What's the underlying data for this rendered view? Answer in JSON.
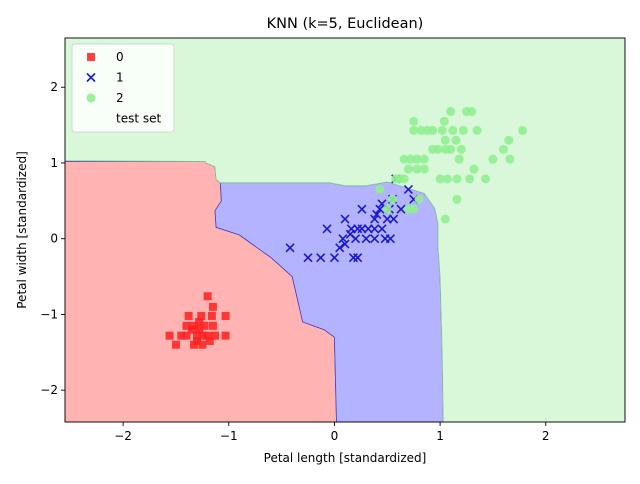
{
  "chart_data": {
    "type": "scatter",
    "title": "KNN (k=5, Euclidean)",
    "xlabel": "Petal length [standardized]",
    "ylabel": "Petal width [standardized]",
    "xlim": [
      -2.55,
      2.75
    ],
    "ylim": [
      -2.42,
      2.65
    ],
    "x_ticks": [
      -2,
      -1,
      0,
      1,
      2
    ],
    "y_ticks": [
      -2,
      -1,
      0,
      1,
      2
    ],
    "x_tick_labels": [
      "−2",
      "−1",
      "0",
      "1",
      "2"
    ],
    "y_tick_labels": [
      "−2",
      "−1",
      "0",
      "1",
      "2"
    ],
    "grid": false,
    "legend_position": "top-left",
    "decision_regions": [
      {
        "class": "0",
        "color": "#ffb3b3",
        "edge": "#d04040",
        "polygon": [
          [
            -2.55,
            -2.42
          ],
          [
            -2.55,
            1.02
          ],
          [
            -1.22,
            1.02
          ],
          [
            -1.22,
            1.0
          ],
          [
            -1.18,
            0.98
          ],
          [
            -1.13,
            0.95
          ],
          [
            -1.12,
            0.78
          ],
          [
            -1.08,
            0.74
          ],
          [
            -1.07,
            0.5
          ],
          [
            -1.13,
            0.37
          ],
          [
            -1.12,
            0.15
          ],
          [
            -0.9,
            0.05
          ],
          [
            -0.8,
            -0.05
          ],
          [
            -0.6,
            -0.25
          ],
          [
            -0.4,
            -0.5
          ],
          [
            -0.3,
            -1.1
          ],
          [
            -0.1,
            -1.2
          ],
          [
            0.0,
            -1.3
          ],
          [
            0.02,
            -2.42
          ]
        ]
      },
      {
        "class": "1",
        "color": "#b3b3ff",
        "edge": "#4040d0",
        "polygon": [
          [
            -1.22,
            1.02
          ],
          [
            -1.22,
            1.0
          ],
          [
            -1.18,
            0.98
          ],
          [
            -1.13,
            0.95
          ],
          [
            -1.12,
            0.78
          ],
          [
            -1.08,
            0.74
          ],
          [
            -0.05,
            0.74
          ],
          [
            0.1,
            0.7
          ],
          [
            0.3,
            0.7
          ],
          [
            0.5,
            0.75
          ],
          [
            0.85,
            0.6
          ],
          [
            0.95,
            0.4
          ],
          [
            0.98,
            0.2
          ],
          [
            0.98,
            -0.1
          ],
          [
            1.0,
            -0.5
          ],
          [
            1.02,
            -1.5
          ],
          [
            1.03,
            -2.42
          ],
          [
            0.02,
            -2.42
          ],
          [
            0.0,
            -1.3
          ],
          [
            -0.1,
            -1.2
          ],
          [
            -0.3,
            -1.1
          ],
          [
            -0.4,
            -0.5
          ],
          [
            -0.6,
            -0.25
          ],
          [
            -0.8,
            -0.05
          ],
          [
            -0.9,
            0.05
          ],
          [
            -1.12,
            0.15
          ],
          [
            -1.13,
            0.37
          ],
          [
            -1.07,
            0.5
          ],
          [
            -1.08,
            0.74
          ],
          [
            -1.12,
            0.78
          ],
          [
            -1.13,
            0.95
          ],
          [
            -1.18,
            0.98
          ],
          [
            -1.22,
            1.0
          ],
          [
            -1.22,
            1.02
          ],
          [
            -2.55,
            1.02
          ],
          [
            -2.55,
            1.03
          ]
        ]
      },
      {
        "class": "2",
        "color": "#d9f7d9",
        "edge": "#8ad08a",
        "polygon": [
          [
            -2.55,
            2.65
          ],
          [
            2.75,
            2.65
          ],
          [
            2.75,
            -2.42
          ],
          [
            1.03,
            -2.42
          ],
          [
            1.02,
            -1.5
          ],
          [
            1.0,
            -0.5
          ],
          [
            0.98,
            -0.1
          ],
          [
            0.98,
            0.2
          ],
          [
            0.95,
            0.4
          ],
          [
            0.85,
            0.6
          ],
          [
            0.5,
            0.75
          ],
          [
            0.3,
            0.7
          ],
          [
            0.1,
            0.7
          ],
          [
            -0.05,
            0.74
          ],
          [
            -1.08,
            0.74
          ],
          [
            -1.12,
            0.78
          ],
          [
            -1.13,
            0.95
          ],
          [
            -1.18,
            0.98
          ],
          [
            -1.22,
            1.0
          ],
          [
            -1.22,
            1.02
          ],
          [
            -2.55,
            1.03
          ]
        ]
      }
    ],
    "series": [
      {
        "name": "0",
        "marker": "square",
        "color": "#ff2020",
        "points": [
          [
            -1.56,
            -1.28
          ],
          [
            -1.5,
            -1.4
          ],
          [
            -1.45,
            -1.28
          ],
          [
            -1.4,
            -1.15
          ],
          [
            -1.4,
            -1.28
          ],
          [
            -1.38,
            -1.02
          ],
          [
            -1.35,
            -1.2
          ],
          [
            -1.33,
            -1.15
          ],
          [
            -1.33,
            -1.4
          ],
          [
            -1.3,
            -1.28
          ],
          [
            -1.3,
            -1.35
          ],
          [
            -1.28,
            -1.2
          ],
          [
            -1.28,
            -1.1
          ],
          [
            -1.26,
            -1.02
          ],
          [
            -1.25,
            -1.28
          ],
          [
            -1.25,
            -1.4
          ],
          [
            -1.23,
            -1.15
          ],
          [
            -1.2,
            -0.76
          ],
          [
            -1.2,
            -1.28
          ],
          [
            -1.18,
            -1.35
          ],
          [
            -1.16,
            -1.02
          ],
          [
            -1.15,
            -0.9
          ],
          [
            -1.15,
            -1.15
          ],
          [
            -1.13,
            -1.28
          ],
          [
            -1.03,
            -1.02
          ],
          [
            -1.03,
            -1.28
          ]
        ]
      },
      {
        "name": "1",
        "marker": "x",
        "color": "#1a1acc",
        "points": [
          [
            -0.42,
            -0.12
          ],
          [
            -0.25,
            -0.25
          ],
          [
            -0.13,
            -0.25
          ],
          [
            -0.07,
            0.13
          ],
          [
            0.0,
            -0.25
          ],
          [
            0.05,
            -0.12
          ],
          [
            0.08,
            0.0
          ],
          [
            0.1,
            0.26
          ],
          [
            0.1,
            -0.07
          ],
          [
            0.15,
            0.06
          ],
          [
            0.16,
            0.13
          ],
          [
            0.18,
            -0.25
          ],
          [
            0.2,
            0.0
          ],
          [
            0.22,
            0.13
          ],
          [
            0.22,
            -0.25
          ],
          [
            0.26,
            0.13
          ],
          [
            0.26,
            0.39
          ],
          [
            0.3,
            0.0
          ],
          [
            0.32,
            0.13
          ],
          [
            0.38,
            0.26
          ],
          [
            0.38,
            0.13
          ],
          [
            0.38,
            0.0
          ],
          [
            0.4,
            0.32
          ],
          [
            0.43,
            0.39
          ],
          [
            0.45,
            0.46
          ],
          [
            0.45,
            0.13
          ],
          [
            0.48,
            0.0
          ],
          [
            0.5,
            0.26
          ],
          [
            0.52,
            0.39
          ],
          [
            0.53,
            0.0
          ],
          [
            0.55,
            0.52
          ],
          [
            0.56,
            0.26
          ],
          [
            0.58,
            0.79
          ],
          [
            0.63,
            0.39
          ],
          [
            0.7,
            0.65
          ],
          [
            0.75,
            0.52
          ]
        ]
      },
      {
        "name": "2",
        "marker": "circle",
        "color": "#90ee90",
        "points": [
          [
            0.43,
            0.65
          ],
          [
            0.5,
            0.39
          ],
          [
            0.55,
            0.52
          ],
          [
            0.58,
            0.79
          ],
          [
            0.62,
            0.79
          ],
          [
            0.66,
            1.05
          ],
          [
            0.66,
            0.79
          ],
          [
            0.7,
            0.92
          ],
          [
            0.7,
            0.39
          ],
          [
            0.72,
            1.05
          ],
          [
            0.75,
            1.43
          ],
          [
            0.75,
            1.55
          ],
          [
            0.75,
            0.39
          ],
          [
            0.78,
            1.05
          ],
          [
            0.78,
            0.92
          ],
          [
            0.8,
            0.52
          ],
          [
            0.82,
            1.43
          ],
          [
            0.85,
            0.92
          ],
          [
            0.85,
            1.05
          ],
          [
            0.88,
            1.43
          ],
          [
            0.93,
            1.18
          ],
          [
            0.93,
            1.43
          ],
          [
            0.98,
            1.18
          ],
          [
            1.0,
            0.79
          ],
          [
            1.02,
            1.43
          ],
          [
            1.04,
            1.55
          ],
          [
            1.05,
            1.18
          ],
          [
            1.05,
            1.3
          ],
          [
            1.05,
            0.26
          ],
          [
            1.07,
            0.79
          ],
          [
            1.1,
            1.18
          ],
          [
            1.1,
            1.68
          ],
          [
            1.12,
            1.43
          ],
          [
            1.15,
            1.3
          ],
          [
            1.16,
            0.79
          ],
          [
            1.16,
            0.52
          ],
          [
            1.18,
            1.05
          ],
          [
            1.2,
            1.18
          ],
          [
            1.22,
            1.43
          ],
          [
            1.25,
            1.68
          ],
          [
            1.28,
            0.79
          ],
          [
            1.3,
            1.68
          ],
          [
            1.32,
            0.92
          ],
          [
            1.35,
            1.43
          ],
          [
            1.43,
            0.79
          ],
          [
            1.5,
            1.05
          ],
          [
            1.6,
            1.18
          ],
          [
            1.65,
            1.3
          ],
          [
            1.66,
            1.05
          ],
          [
            1.78,
            1.43
          ]
        ]
      }
    ],
    "legend": [
      {
        "label": "0",
        "marker": "square",
        "color": "#ff2020"
      },
      {
        "label": "1",
        "marker": "x",
        "color": "#1a1acc"
      },
      {
        "label": "2",
        "marker": "circle",
        "color": "#90ee90"
      },
      {
        "label": "test set",
        "marker": "none",
        "color": "#ffffff"
      }
    ]
  }
}
